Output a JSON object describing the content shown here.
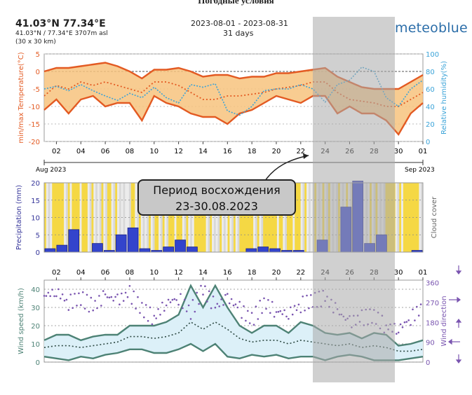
{
  "page_title": "Погодные условия",
  "header": {
    "location": "41.03°N 77.34°E",
    "location_detail": "41.03°N / 77.34°E  3707m asl",
    "grid": "(30 x 30 km)",
    "date_range": "2023-08-01 - 2023-08-31",
    "days": "31 days",
    "brand": "meteoblue"
  },
  "callout": {
    "line1": "Период восхождения",
    "line2": "23-30.08.2023"
  },
  "colors": {
    "temp_line": "#e35a22",
    "temp_fill": "#f7c37e",
    "humidity": "#3aa3d8",
    "precip": "#3344cc",
    "cloud_clear": "#f5d844",
    "cloud_overcast": "#d8d8d8",
    "wind_line": "#4d8275",
    "wind_fill": "#dcf0f8",
    "wind_dir": "#7a55b0",
    "highlight": "#aaaaaa"
  },
  "chart_data": [
    {
      "type": "line",
      "ylabel": "min/max Temperature(°C)",
      "y2label": "Relative humidity(%)",
      "ylim": [
        -20,
        5
      ],
      "yticks": [
        5,
        0,
        -5,
        -10,
        -15,
        -20
      ],
      "y2lim": [
        0,
        100
      ],
      "y2ticks": [
        100,
        80,
        60,
        40,
        20,
        0
      ],
      "xticks": [
        "02",
        "04",
        "06",
        "08",
        "10",
        "12",
        "14",
        "16",
        "18",
        "20",
        "22",
        "24",
        "26",
        "28",
        "30",
        "01"
      ],
      "month_labels": [
        "Aug 2023",
        "Sep 2023"
      ],
      "x": [
        1,
        2,
        3,
        4,
        5,
        6,
        7,
        8,
        9,
        10,
        11,
        12,
        13,
        14,
        15,
        16,
        17,
        18,
        19,
        20,
        21,
        22,
        23,
        24,
        25,
        26,
        27,
        28,
        29,
        30,
        31,
        32
      ],
      "series": [
        {
          "name": "max",
          "values": [
            0,
            1,
            1,
            1.5,
            2,
            2.5,
            1.5,
            0,
            -2,
            0.5,
            0.5,
            1,
            0,
            -1.5,
            -1,
            -1,
            -2,
            -1.5,
            -1.5,
            -0.5,
            -0.5,
            0,
            0.5,
            1,
            -1.5,
            -3,
            -4.5,
            -5,
            -5,
            -5,
            -3,
            -1
          ]
        },
        {
          "name": "mean",
          "values": [
            -7,
            -4,
            -5,
            -3,
            -4,
            -3,
            -4,
            -5,
            -6,
            -3,
            -3,
            -4,
            -6,
            -8,
            -8,
            -7,
            -7,
            -6.5,
            -6,
            -5,
            -4.5,
            -4,
            -3,
            -3,
            -6,
            -8,
            -8.5,
            -9,
            -10,
            -10,
            -8,
            -6
          ]
        },
        {
          "name": "min",
          "values": [
            -11,
            -8,
            -12,
            -8,
            -7,
            -10,
            -9,
            -9,
            -14,
            -7,
            -9,
            -10,
            -12,
            -13,
            -13,
            -15,
            -12,
            -11,
            -9,
            -7,
            -8,
            -9,
            -7,
            -7,
            -12,
            -10,
            -12,
            -12,
            -14,
            -18,
            -12,
            -9
          ]
        },
        {
          "name": "humidity",
          "values": [
            60,
            63,
            58,
            65,
            58,
            52,
            47,
            55,
            50,
            62,
            50,
            44,
            65,
            62,
            66,
            35,
            30,
            40,
            58,
            60,
            60,
            65,
            60,
            45,
            65,
            70,
            85,
            80,
            50,
            40,
            60,
            70
          ]
        }
      ]
    },
    {
      "type": "bar",
      "ylabel": "Precipitation (mm)",
      "y2label": "Cloud cover",
      "ylim": [
        0,
        20
      ],
      "yticks": [
        20,
        15,
        10,
        5,
        0
      ],
      "x": [
        1,
        2,
        3,
        4,
        5,
        6,
        7,
        8,
        9,
        10,
        11,
        12,
        13,
        14,
        15,
        16,
        17,
        18,
        19,
        20,
        21,
        22,
        23,
        24,
        25,
        26,
        27,
        28,
        29,
        30,
        31,
        32
      ],
      "values": [
        1,
        2,
        6.5,
        0,
        2.5,
        0.5,
        5,
        7,
        1,
        0.5,
        1.5,
        3.5,
        1.5,
        0,
        0,
        0,
        0,
        1,
        1.5,
        1,
        0.5,
        0.5,
        0,
        3.5,
        0,
        13,
        20.5,
        2.5,
        5,
        0,
        0,
        0.5
      ],
      "cloud_cover": [
        45,
        35,
        25,
        55,
        60,
        70,
        85,
        60,
        70,
        65,
        30,
        45,
        55,
        40,
        75,
        85,
        40,
        35,
        30,
        20,
        35,
        55,
        75,
        90,
        70,
        85,
        80,
        85,
        75,
        30,
        25,
        30
      ]
    },
    {
      "type": "line",
      "ylabel": "Wind speed (km/h)",
      "y2label": "Wind direction",
      "ylim": [
        0,
        45
      ],
      "yticks": [
        40,
        30,
        20,
        10,
        0
      ],
      "y2lim": [
        0,
        360
      ],
      "y2ticks": [
        360,
        270,
        180,
        90,
        0
      ],
      "xticks": [
        "02",
        "04",
        "06",
        "08",
        "10",
        "12",
        "14",
        "16",
        "18",
        "20",
        "22",
        "24",
        "26",
        "28",
        "30",
        "01"
      ],
      "x": [
        1,
        2,
        3,
        4,
        5,
        6,
        7,
        8,
        9,
        10,
        11,
        12,
        13,
        14,
        15,
        16,
        17,
        18,
        19,
        20,
        21,
        22,
        23,
        24,
        25,
        26,
        27,
        28,
        29,
        30,
        31,
        32
      ],
      "series": [
        {
          "name": "max",
          "values": [
            12,
            15,
            15,
            12,
            14,
            15,
            15,
            20,
            20,
            20,
            22,
            26,
            42,
            30,
            42,
            30,
            20,
            16,
            20,
            20,
            16,
            22,
            20,
            16,
            15,
            16,
            13,
            16,
            15,
            9,
            10,
            12
          ]
        },
        {
          "name": "mean",
          "values": [
            8,
            9,
            9,
            8,
            9,
            10,
            11,
            14,
            14,
            13,
            14,
            16,
            22,
            18,
            22,
            18,
            13,
            11,
            12,
            12,
            10,
            12,
            11,
            10,
            9,
            10,
            8,
            9,
            8,
            6,
            6,
            7
          ]
        },
        {
          "name": "min",
          "values": [
            3,
            2,
            1,
            3,
            2,
            4,
            5,
            7,
            7,
            5,
            5,
            7,
            10,
            6,
            10,
            3,
            2,
            4,
            3,
            4,
            2,
            3,
            3,
            1,
            3,
            4,
            3,
            1,
            1,
            1,
            2,
            3
          ]
        },
        {
          "name": "direction",
          "values": [
            300,
            320,
            270,
            290,
            250,
            300,
            280,
            310,
            240,
            200,
            270,
            290,
            230,
            330,
            250,
            290,
            240,
            190,
            270,
            230,
            220,
            260,
            280,
            290,
            230,
            180,
            200,
            210,
            160,
            150,
            200,
            250
          ]
        }
      ]
    }
  ]
}
